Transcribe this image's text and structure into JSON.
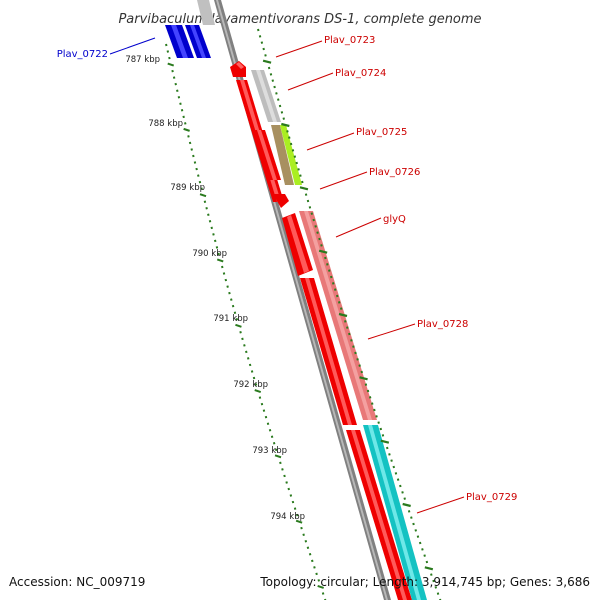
{
  "title": "Parvibaculum lavamentivorans DS-1, complete genome",
  "accession_text": "Accession: NC_009719",
  "summary_text": "Topology: circular; Length: 3,914,745 bp; Genes: 3,686",
  "colors": {
    "forward_label": "#cc0000",
    "reverse_label": "#0000cc",
    "backbone": "#808080",
    "tick": "#2a7a1e"
  },
  "ruler": {
    "labels": [
      "787 kbp",
      "788 kbp",
      "789 kbp",
      "790 kbp",
      "791 kbp",
      "792 kbp",
      "793 kbp",
      "794 kbp"
    ]
  },
  "genes": [
    {
      "name": "Plav_0722",
      "label_color": "#0000cc"
    },
    {
      "name": "Plav_0723",
      "label_color": "#cc0000"
    },
    {
      "name": "Plav_0724",
      "label_color": "#cc0000"
    },
    {
      "name": "Plav_0725",
      "label_color": "#cc0000"
    },
    {
      "name": "Plav_0726",
      "label_color": "#cc0000"
    },
    {
      "name": "glyQ",
      "label_color": "#cc0000"
    },
    {
      "name": "Plav_0728",
      "label_color": "#cc0000"
    },
    {
      "name": "Plav_0729",
      "label_color": "#cc0000"
    }
  ]
}
